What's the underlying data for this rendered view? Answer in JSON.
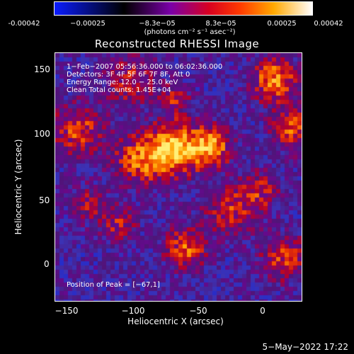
{
  "colorbar": {
    "ticks": [
      "-0.00042",
      "−0.00025",
      "−8.3e−05",
      "8.3e−05",
      "0.00025",
      "0.00042"
    ],
    "units": "(photons cm⁻² s⁻¹ asec⁻²)",
    "colors": [
      "#0a1cff",
      "#000000",
      "#7a00a8",
      "#ff3a00",
      "#ffa800",
      "#ffffff"
    ]
  },
  "title": "Reconstructed RHESSI Image",
  "annotations": {
    "time": "1−Feb−2007 05:56:36.000 to 06:02:36.000",
    "detectors": "Detectors: 3F 4F 5F 6F 7F 8F, Att 0",
    "energy": "Energy Range: 12.0 − 25.0 keV",
    "clean": "Clean     Total counts: 1.45E+04",
    "peak": "Position of Peak = [−67,1]"
  },
  "axes": {
    "xlabel": "Heliocentric X (arcsec)",
    "ylabel": "Heliocentric Y (arcsec)",
    "xticks": [
      "−150",
      "−100",
      "−50",
      "0"
    ],
    "yticks": [
      "0",
      "50",
      "100",
      "150"
    ]
  },
  "date": "5−May−2022 17:22"
}
